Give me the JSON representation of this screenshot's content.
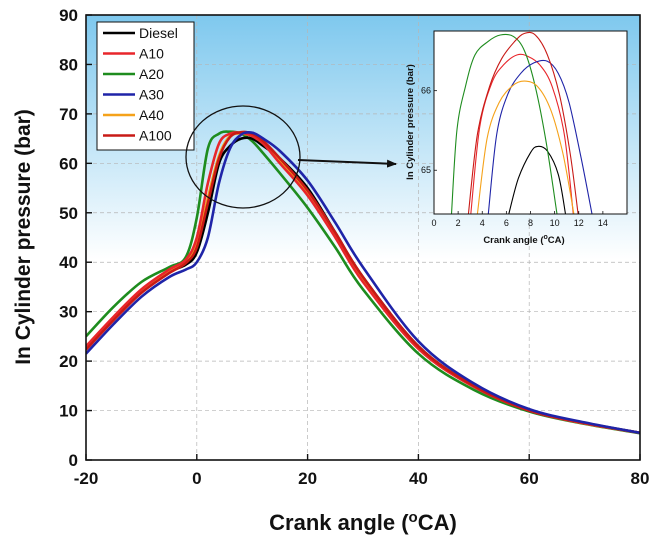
{
  "colors": {
    "Diesel": "#000000",
    "A10": "#e8262b",
    "A20": "#1e8c1e",
    "A30": "#1f24a8",
    "A40": "#f5a21a",
    "A100": "#c81a16",
    "bg_top": "#7ec8ee",
    "bg_bottom": "#ffffff"
  },
  "chart_data": [
    {
      "type": "line",
      "title": "",
      "xlabel": "Crank angle (",
      "xlabel_sup": "o",
      "xlabel_tail": "CA)",
      "ylabel": "In Cylinder pressure (bar)",
      "xlim": [
        -20,
        80
      ],
      "ylim": [
        0,
        90
      ],
      "xticks": [
        "-20",
        "0",
        "20",
        "40",
        "60",
        "80"
      ],
      "yticks": [
        "0",
        "10",
        "20",
        "30",
        "40",
        "50",
        "60",
        "70",
        "80",
        "90"
      ],
      "grid": true,
      "legend": "top-left",
      "annotation": "circle around peak region (x≈0–20) with arrow to inset",
      "series": [
        {
          "name": "Diesel",
          "x": [
            -20,
            -15,
            -10,
            -5,
            -2,
            0,
            2,
            4,
            6,
            8,
            10,
            12,
            15,
            20,
            25,
            30,
            40,
            50,
            60,
            70,
            80
          ],
          "y": [
            22.8,
            28.5,
            34,
            38,
            39.5,
            42,
            50,
            60,
            63.5,
            65,
            65,
            63.5,
            61,
            55,
            46,
            37,
            23,
            15,
            10,
            7.5,
            5.5
          ]
        },
        {
          "name": "A10",
          "x": [
            -20,
            -15,
            -10,
            -5,
            -2,
            0,
            2,
            4,
            6,
            8,
            10,
            12,
            15,
            20,
            25,
            30,
            40,
            50,
            60,
            70,
            80
          ],
          "y": [
            23,
            29,
            34.5,
            38.5,
            40.5,
            45,
            56,
            64,
            66,
            66.2,
            65.5,
            64,
            60,
            53.5,
            45,
            36,
            22.5,
            14.8,
            10,
            7.4,
            5.5
          ]
        },
        {
          "name": "A20",
          "x": [
            -20,
            -15,
            -10,
            -5,
            -2,
            0,
            2,
            4,
            6,
            8,
            10,
            12,
            15,
            20,
            25,
            30,
            40,
            50,
            60,
            70,
            80
          ],
          "y": [
            25,
            31,
            36,
            39,
            41,
            49,
            63,
            66,
            66.4,
            66,
            64.5,
            62,
            58,
            51,
            43,
            34.5,
            21.5,
            14.2,
            9.8,
            7.3,
            5.4
          ]
        },
        {
          "name": "A30",
          "x": [
            -20,
            -15,
            -10,
            -5,
            -2,
            0,
            2,
            4,
            6,
            8,
            10,
            12,
            15,
            20,
            25,
            30,
            40,
            50,
            60,
            70,
            80
          ],
          "y": [
            21.5,
            27.5,
            33,
            37,
            38.5,
            40,
            45,
            56,
            63,
            65.8,
            66.2,
            65,
            62.5,
            56.5,
            48,
            39,
            24,
            15.5,
            10.3,
            7.6,
            5.5
          ]
        },
        {
          "name": "A40",
          "x": [
            -20,
            -15,
            -10,
            -5,
            -2,
            0,
            2,
            4,
            6,
            8,
            10,
            12,
            15,
            20,
            25,
            30,
            40,
            50,
            60,
            70,
            80
          ],
          "y": [
            22.5,
            28.5,
            34,
            38,
            40,
            43.5,
            53,
            61.5,
            65.5,
            66,
            65.5,
            64,
            60.5,
            54,
            45.5,
            36.5,
            22.8,
            15,
            10.1,
            7.4,
            5.5
          ]
        },
        {
          "name": "A100",
          "x": [
            -20,
            -15,
            -10,
            -5,
            -2,
            0,
            2,
            4,
            6,
            8,
            10,
            12,
            15,
            20,
            25,
            30,
            40,
            50,
            60,
            70,
            80
          ],
          "y": [
            22.3,
            28.3,
            33.8,
            37.8,
            39.8,
            43,
            52,
            61,
            65.3,
            66.3,
            66,
            64.5,
            61,
            54.5,
            46,
            37,
            23,
            15,
            10.1,
            7.5,
            5.5
          ]
        }
      ]
    },
    {
      "type": "line",
      "title": "",
      "xlabel": "Crank angle (",
      "xlabel_sup": "o",
      "xlabel_tail": "CA)",
      "ylabel": "In Cylinder pressure (bar)",
      "xlim": [
        0,
        16
      ],
      "ylim": [
        64.45,
        66.75
      ],
      "xticks": [
        "0",
        "2",
        "4",
        "6",
        "8",
        "10",
        "12",
        "14"
      ],
      "yticks": [
        "65",
        "66"
      ],
      "series": [
        {
          "name": "Diesel",
          "x": [
            6.2,
            7,
            8,
            8.6,
            9.4,
            10.3,
            10.9
          ],
          "y": [
            64.45,
            64.9,
            65.22,
            65.3,
            65.24,
            64.95,
            64.45
          ]
        },
        {
          "name": "A10",
          "x": [
            3.05,
            3.8,
            4.8,
            5.8,
            6.9,
            7.8,
            8.8,
            9.8,
            10.8,
            11.55
          ],
          "y": [
            64.45,
            65.55,
            66.1,
            66.33,
            66.45,
            66.43,
            66.32,
            66.05,
            65.45,
            64.45
          ]
        },
        {
          "name": "A20",
          "x": [
            1.45,
            1.9,
            2.6,
            3.4,
            4.5,
            5.5,
            6.6,
            7.5,
            8.4,
            9.3,
            10.2
          ],
          "y": [
            64.45,
            65.5,
            66.05,
            66.45,
            66.62,
            66.7,
            66.68,
            66.5,
            66.05,
            65.35,
            64.45
          ]
        },
        {
          "name": "A30",
          "x": [
            4.5,
            5.2,
            6.1,
            7.2,
            8.3,
            9.4,
            10.3,
            11.2,
            12.2,
            13.1
          ],
          "y": [
            64.45,
            65.45,
            65.95,
            66.22,
            66.35,
            66.37,
            66.22,
            65.85,
            65.15,
            64.45
          ]
        },
        {
          "name": "A40",
          "x": [
            3.6,
            4.4,
            5.4,
            6.5,
            7.5,
            8.6,
            9.7,
            10.7,
            11.6
          ],
          "y": [
            64.45,
            65.4,
            65.85,
            66.06,
            66.12,
            66.05,
            65.75,
            65.2,
            64.45
          ]
        },
        {
          "name": "A100",
          "x": [
            2.85,
            3.6,
            4.6,
            5.6,
            6.7,
            7.5,
            8.4,
            9.4,
            10.4,
            11.3,
            11.95
          ],
          "y": [
            64.45,
            65.45,
            66.05,
            66.4,
            66.62,
            66.72,
            66.7,
            66.45,
            65.95,
            65.2,
            64.45
          ]
        }
      ]
    }
  ]
}
